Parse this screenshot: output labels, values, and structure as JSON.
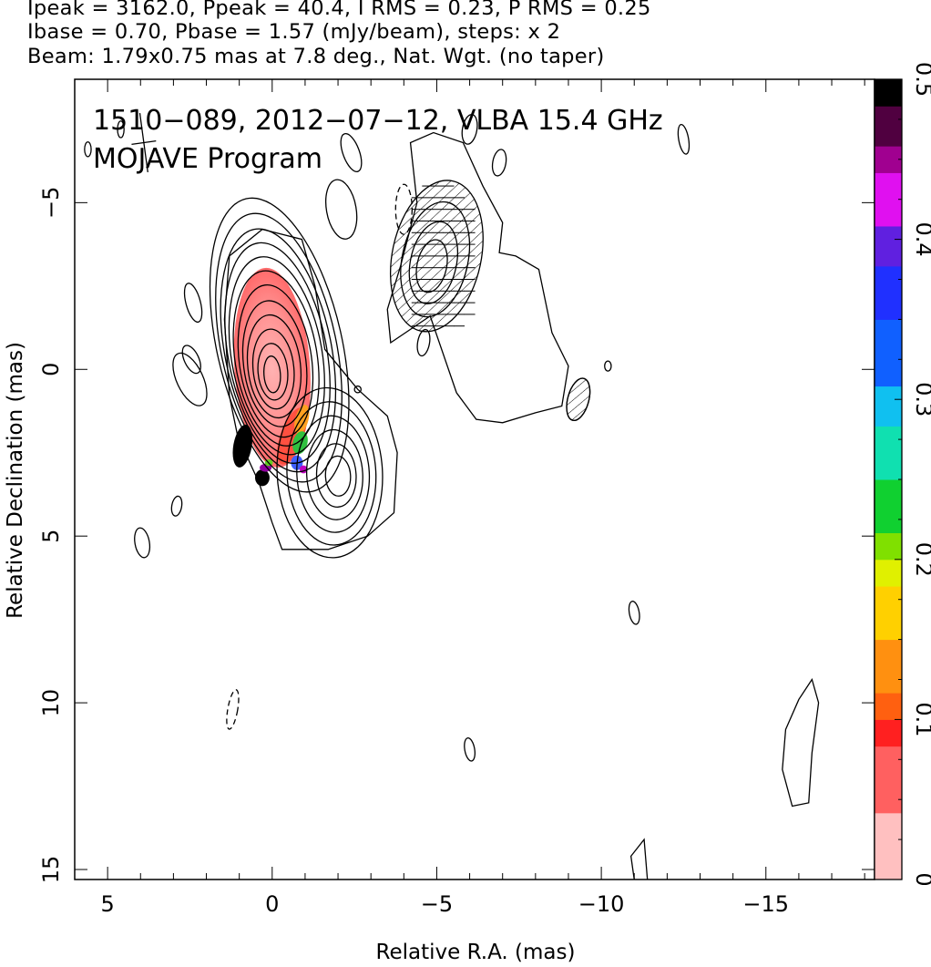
{
  "header": {
    "line1": "Ipeak = 3162.0, Ppeak = 40.4, I RMS = 0.23, P RMS = 0.25",
    "line2": "Ibase = 0.70, Pbase = 1.57 (mJy/beam), steps: x 2",
    "line3": "Beam: 1.79x0.75 mas at 7.8 deg., Nat. Wgt. (no taper)"
  },
  "chart_data": {
    "type": "contour",
    "annotation_line1": "1510−089, 2012−07−12, VLBA 15.4 GHz",
    "annotation_line2": "MOJAVE Program",
    "xlabel": "Relative R.A. (mas)",
    "ylabel": "Relative Declination (mas)",
    "xlim": [
      6.0,
      -18.3
    ],
    "ylim": [
      -8.7,
      15.3
    ],
    "x_ticks": [
      5,
      0,
      -5,
      -10,
      -15
    ],
    "x_tick_labels": [
      "5",
      "0",
      "−5",
      "−10",
      "−15"
    ],
    "y_ticks": [
      15,
      10,
      5,
      0,
      -5
    ],
    "y_tick_labels": [
      "15",
      "10",
      "5",
      "0",
      "−5"
    ],
    "colorbar": {
      "min": 0,
      "max": 0.5,
      "ticks": [
        0,
        0.1,
        0.2,
        0.3,
        0.4,
        0.5
      ],
      "tick_labels": [
        "0",
        "0.1",
        "0.2",
        "0.3",
        "0.4",
        "0.5"
      ]
    },
    "colors": {
      "contour": "#000000",
      "polarization_fill": "#ff8080",
      "polarization_peak": "#000000"
    },
    "core": {
      "x": 0.0,
      "y": 0.15,
      "contour_count": 12
    },
    "jet_knot": {
      "x": -2.0,
      "y": 3.2,
      "contour_count": 6
    },
    "southwest_component": {
      "x": -5.0,
      "y": -3.4,
      "contour_count": 4
    },
    "beam": {
      "major_mas": 1.79,
      "minor_mas": 0.75,
      "pa_deg": 7.8,
      "x": 3.9,
      "y": -6.8
    },
    "ipeak_mJy": 3162.0,
    "ppeak_mJy": 40.4,
    "i_rms": 0.23,
    "p_rms": 0.25,
    "ibase": 0.7,
    "pbase": 1.57,
    "contour_step": "x 2"
  }
}
